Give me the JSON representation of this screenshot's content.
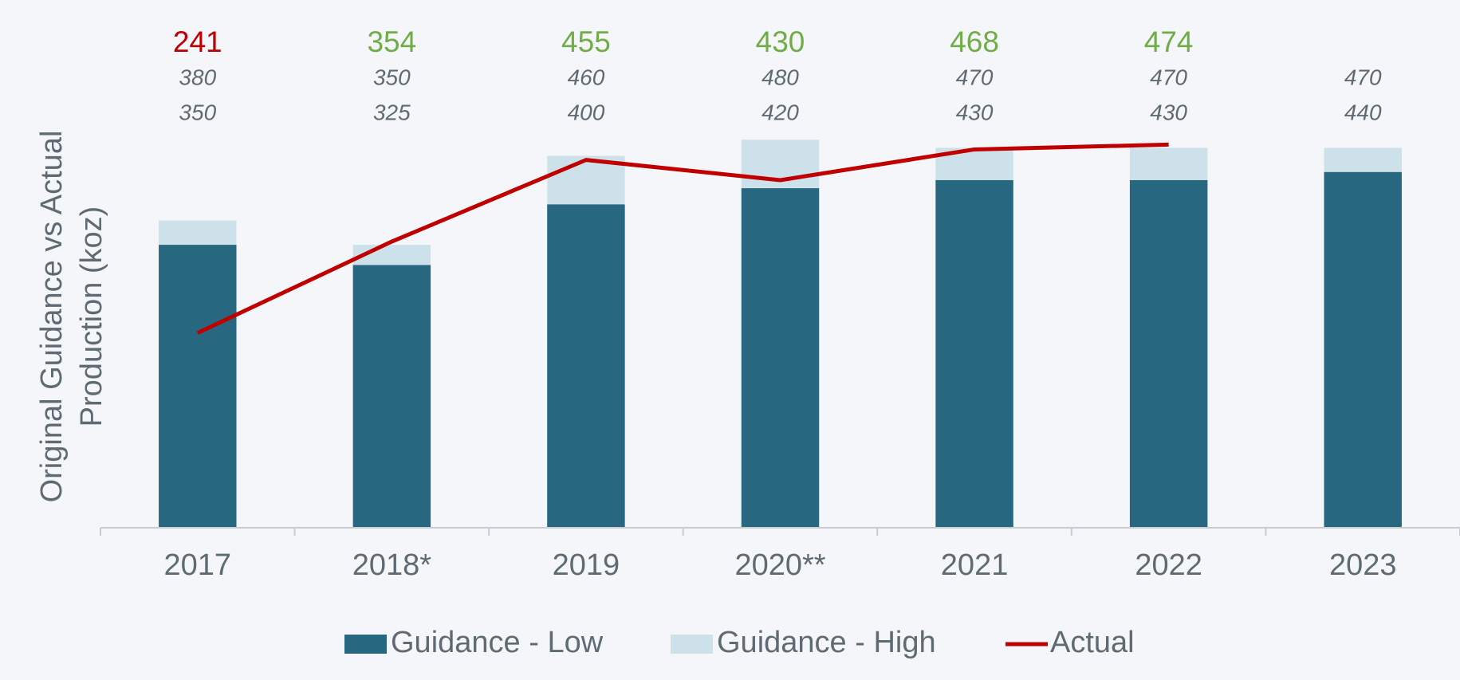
{
  "chart_data": {
    "type": "bar",
    "ylabel": [
      "Original Guidance vs Actual",
      "Production  (koz)"
    ],
    "categories": [
      "2017",
      "2018*",
      "2019",
      "2020**",
      "2021",
      "2022",
      "2023"
    ],
    "series": [
      {
        "name": "Guidance - Low",
        "type": "bar",
        "color": "#286780",
        "values": [
          350,
          325,
          400,
          420,
          430,
          430,
          440
        ]
      },
      {
        "name": "Guidance - High",
        "type": "bar",
        "color": "#cce1ea",
        "values": [
          380,
          350,
          460,
          480,
          470,
          470,
          470
        ]
      },
      {
        "name": "Actual",
        "type": "line",
        "color": "#c00000",
        "values": [
          241,
          354,
          455,
          430,
          468,
          474,
          null
        ],
        "label_colors": [
          "#c00000",
          "#70ad47",
          "#70ad47",
          "#70ad47",
          "#70ad47",
          "#70ad47",
          null
        ]
      }
    ],
    "ylim": [
      0,
      500
    ],
    "grid": false,
    "legend": "bottom"
  }
}
